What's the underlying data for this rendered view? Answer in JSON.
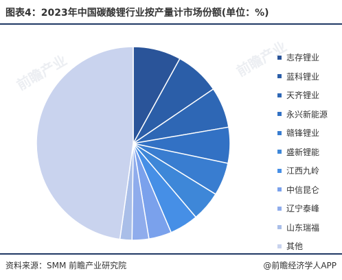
{
  "header": {
    "title": "图表4：2023年中国碳酸锂行业按产量计市场份额(单位：%)"
  },
  "footer": {
    "source": "资料来源：SMM 前瞻产业研究院",
    "brand": "@前瞻经济学人APP"
  },
  "watermark": {
    "text": "前瞻产业"
  },
  "chart_data": {
    "type": "pie",
    "title": "图表4：2023年中国碳酸锂行业按产量计市场份额(单位：%)",
    "unit": "%",
    "legend_position": "right",
    "start_angle": "12 o'clock, clockwise",
    "slices": [
      {
        "label": "志存锂业",
        "value": 8.0,
        "color": "#2a5499"
      },
      {
        "label": "蓝科锂业",
        "value": 7.5,
        "color": "#2b5ea8"
      },
      {
        "label": "天齐锂业",
        "value": 6.8,
        "color": "#2e67b5"
      },
      {
        "label": "永兴新能源",
        "value": 6.0,
        "color": "#3271c4"
      },
      {
        "label": "赣锋锂业",
        "value": 5.5,
        "color": "#397dd0"
      },
      {
        "label": "盛新锂能",
        "value": 5.0,
        "color": "#3e87d8"
      },
      {
        "label": "江西九岭",
        "value": 4.8,
        "color": "#468fe6"
      },
      {
        "label": "中信昆仑",
        "value": 3.8,
        "color": "#7aa1ec"
      },
      {
        "label": "辽宁泰峰",
        "value": 2.8,
        "color": "#8facec"
      },
      {
        "label": "山东瑞福",
        "value": 2.0,
        "color": "#a9bee8"
      },
      {
        "label": "其他",
        "value": 47.8,
        "color": "#c9d3ee"
      }
    ]
  }
}
